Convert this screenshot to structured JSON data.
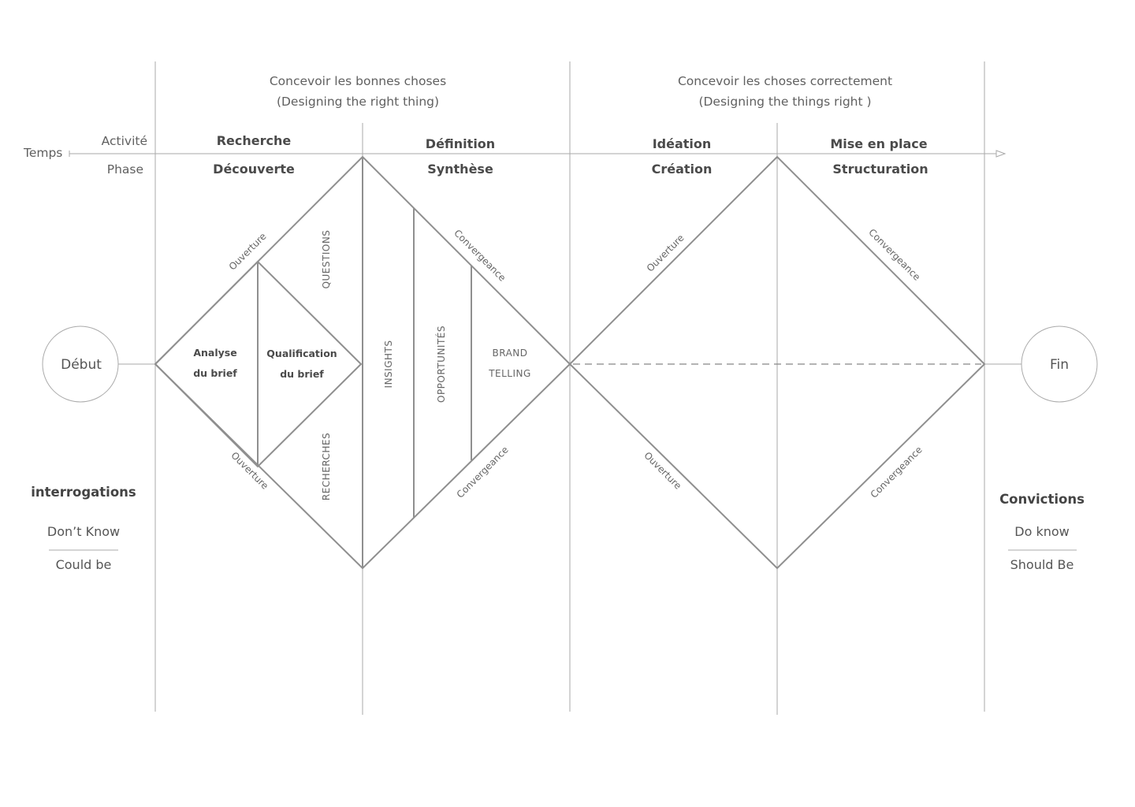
{
  "headers": {
    "left_line1": "Concevoir les bonnes choses",
    "left_line2": "(Designing the right thing)",
    "right_line1": "Concevoir les choses correctement",
    "right_line2": "(Designing the things right )"
  },
  "row_labels": {
    "temps": "Temps",
    "activite": "Activité",
    "phase": "Phase"
  },
  "columns": [
    {
      "activity": "Recherche",
      "phase": "Découverte"
    },
    {
      "activity": "Définition",
      "phase": "Synthèse"
    },
    {
      "activity": "Idéation",
      "phase": "Création"
    },
    {
      "activity": "Mise en place",
      "phase": "Structuration"
    }
  ],
  "nodes": {
    "start": "Début",
    "end": "Fin"
  },
  "diamond1": {
    "ouverture_top": "Ouverture",
    "ouverture_bottom": "Ouverture",
    "questions": "QUESTIONS",
    "recherches": "RECHERCHES",
    "analyse_line1": "Analyse",
    "analyse_line2": "du brief",
    "qualif_line1": "Qualification",
    "qualif_line2": "du brief",
    "insights": "INSIGHTS",
    "opportunites": "OPPORTUNITÉS",
    "brand_line1": "BRAND",
    "brand_line2": "TELLING",
    "convergence_top": "Convergeance",
    "convergence_bottom": "Convergeance"
  },
  "diamond2": {
    "ouverture_top": "Ouverture",
    "ouverture_bottom": "Ouverture",
    "convergence_top": "Convergeance",
    "convergence_bottom": "Convergeance"
  },
  "left_side": {
    "title": "interrogations",
    "top": "Don’t Know",
    "bottom": "Could be"
  },
  "right_side": {
    "title": "Convictions",
    "top": "Do know",
    "bottom": "Should Be"
  }
}
